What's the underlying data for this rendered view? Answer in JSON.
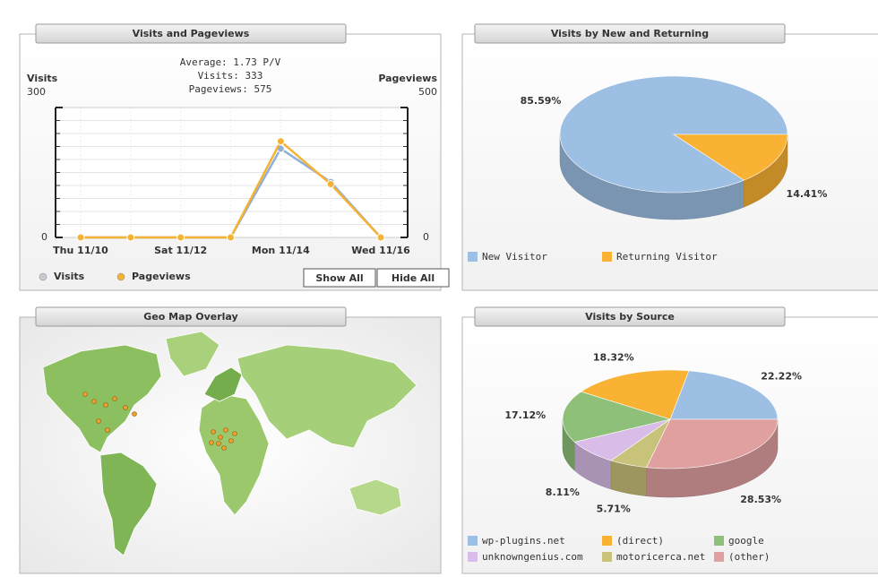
{
  "chart_data": [
    {
      "type": "line",
      "title": "Visits and Pageviews",
      "subtitle": [
        "Average: 1.73 P/V",
        "Visits: 333",
        "Pageviews: 575"
      ],
      "y_label": "Visits",
      "y2_label": "Pageviews",
      "categories": [
        "Thu 11/10",
        null,
        "Sat 11/12",
        null,
        "Mon 11/14",
        null,
        "Wed 11/16"
      ],
      "ylim": [
        0,
        300
      ],
      "yticks": [
        0,
        300
      ],
      "y2lim": [
        0,
        500
      ],
      "y2ticks": [
        0,
        500
      ],
      "series": [
        {
          "name": "Visits",
          "color": "#8fb0d8",
          "values": [
            0,
            0,
            0,
            0,
            205,
            128,
            0
          ]
        },
        {
          "name": "Pageviews",
          "color": "#f5b335",
          "values": [
            0,
            0,
            0,
            0,
            370,
            205,
            0
          ],
          "axis": "y2"
        }
      ],
      "grid": true,
      "buttons": [
        "Show All",
        "Hide All"
      ]
    },
    {
      "type": "pie",
      "title": "Visits by New and Returning",
      "categories": [
        "New Visitor",
        "Returning Visitor"
      ],
      "values": [
        85.59,
        14.41
      ],
      "value_labels": [
        "85.59%",
        "14.41%"
      ],
      "colors": [
        "#9dbfe3",
        "#f9b233"
      ]
    },
    {
      "type": "pie",
      "title": "Visits by Source",
      "categories": [
        "wp-plugins.net",
        "(direct)",
        "google",
        "unknowngenius.com",
        "motoricerca.net",
        "(other)"
      ],
      "values": [
        22.22,
        18.32,
        17.12,
        8.11,
        5.71,
        28.53
      ],
      "value_labels": [
        "22.22%",
        "18.32%",
        "17.12%",
        "8.11%",
        "5.71%",
        "28.53%"
      ],
      "colors": [
        "#9dbfe3",
        "#f9b233",
        "#8fc07a",
        "#d9bde8",
        "#c9c27a",
        "#e0a0a0"
      ]
    }
  ],
  "map": {
    "title": "Geo Map Overlay"
  }
}
